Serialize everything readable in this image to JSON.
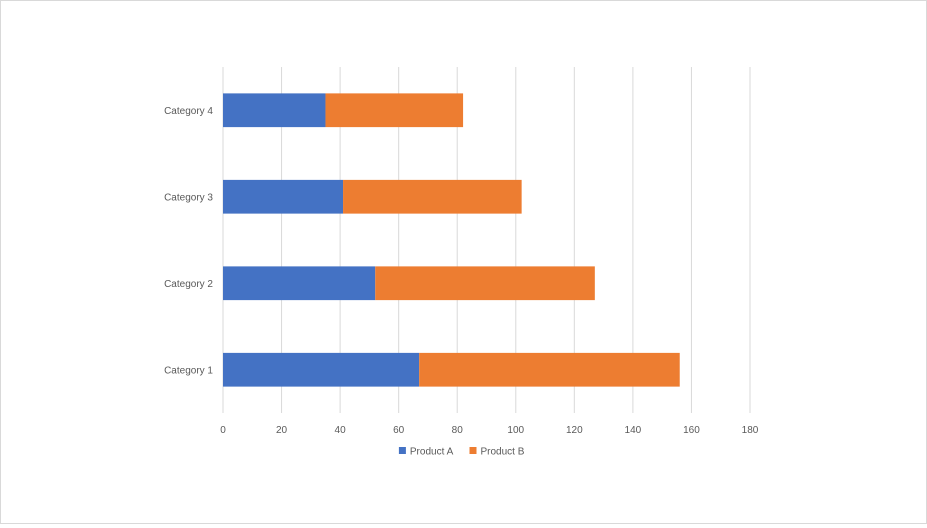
{
  "chart_data": {
    "type": "bar",
    "orientation": "horizontal",
    "stacked": true,
    "categories": [
      "Category 1",
      "Category 2",
      "Category 3",
      "Category 4"
    ],
    "series": [
      {
        "name": "Product A",
        "values": [
          67,
          52,
          41,
          35
        ],
        "color": "#4472C4"
      },
      {
        "name": "Product B",
        "values": [
          89,
          75,
          61,
          47
        ],
        "color": "#ED7D31"
      }
    ],
    "xlim": [
      0,
      180
    ],
    "x_ticks": [
      "0",
      "20",
      "40",
      "60",
      "80",
      "100",
      "120",
      "140",
      "160",
      "180"
    ],
    "grid": "vertical",
    "legend_position": "bottom"
  }
}
